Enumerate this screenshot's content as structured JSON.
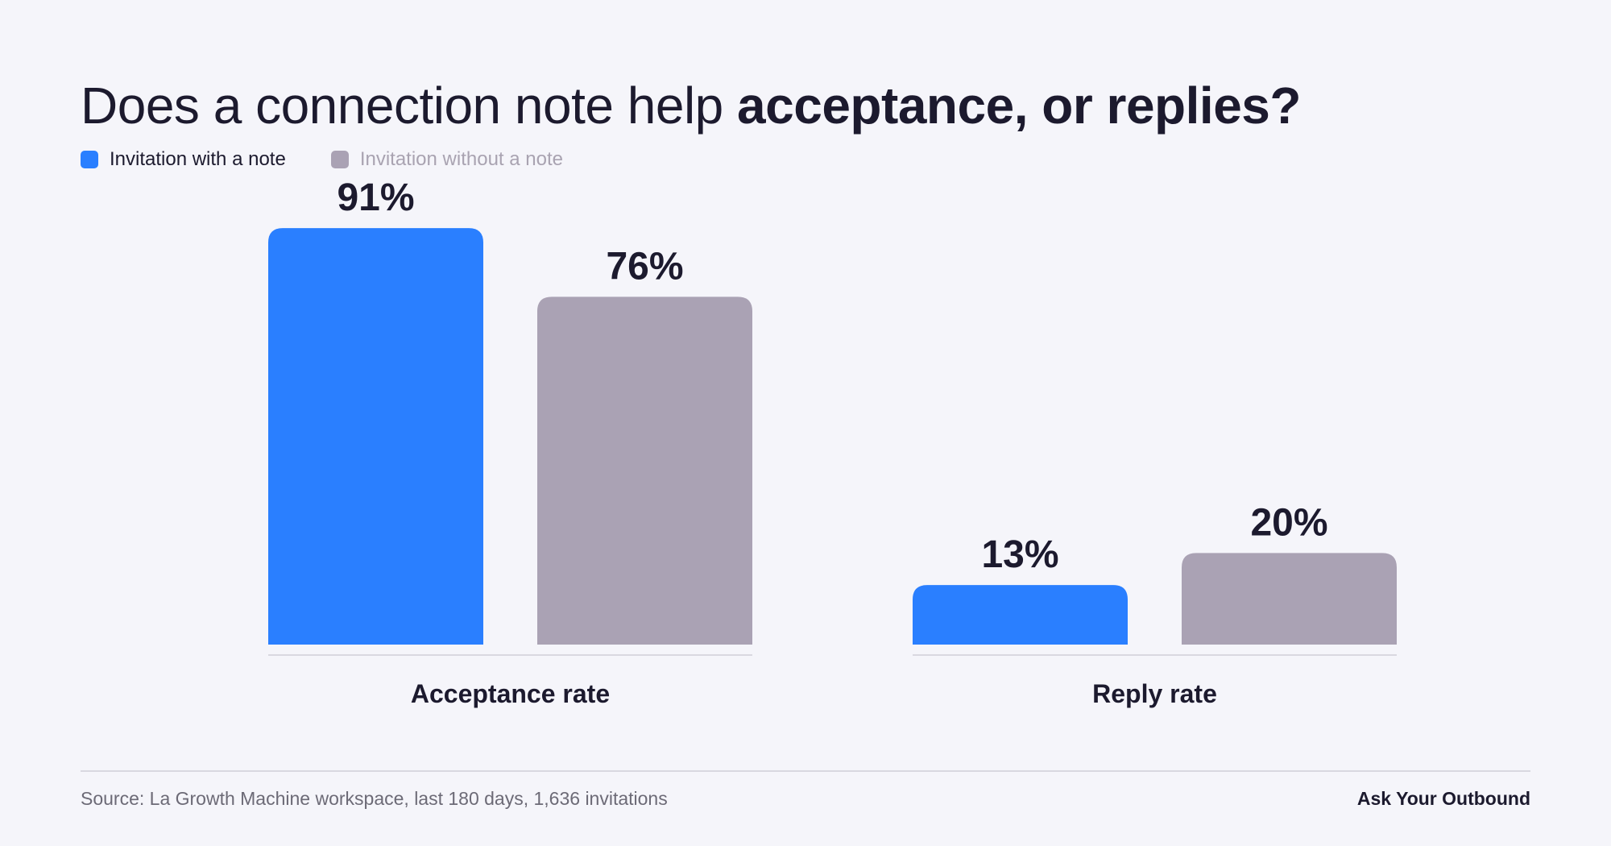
{
  "title_regular": "Does a connection note help ",
  "title_bold": "acceptance, or replies?",
  "legend": [
    {
      "label": "Invitation with a note",
      "color": "#2a7fff"
    },
    {
      "label": "Invitation without a note",
      "color": "#aaa2b4"
    }
  ],
  "chart_data": {
    "type": "bar",
    "categories": [
      "Acceptance rate",
      "Reply rate"
    ],
    "series": [
      {
        "name": "Invitation with a note",
        "values": [
          91,
          13
        ],
        "labels": [
          "91%",
          "13%"
        ],
        "color": "#2a7fff"
      },
      {
        "name": "Invitation without a note",
        "values": [
          76,
          20
        ],
        "labels": [
          "76%",
          "20%"
        ],
        "color": "#aaa2b4"
      }
    ],
    "ylim": [
      0,
      100
    ],
    "grid": false,
    "legend_position": "top-left"
  },
  "footer": {
    "source": "Source: La Growth Machine workspace, last 180 days, 1,636 invitations",
    "brand": "Ask Your Outbound"
  }
}
